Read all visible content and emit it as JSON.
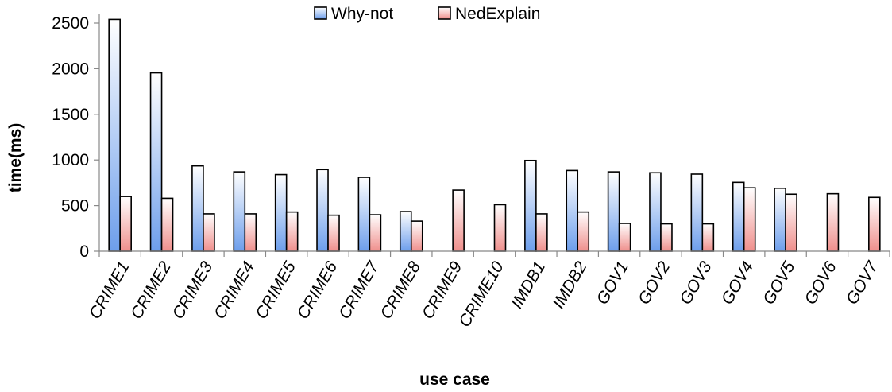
{
  "chart_data": {
    "type": "bar",
    "title": "",
    "xlabel": "use case",
    "ylabel": "time(ms)",
    "ylim": [
      0,
      2500
    ],
    "yticks": [
      0,
      500,
      1000,
      1500,
      2000,
      2500
    ],
    "grid": false,
    "legend_position": "top",
    "categories": [
      "CRIME1",
      "CRIME2",
      "CRIME3",
      "CRIME4",
      "CRIME5",
      "CRIME6",
      "CRIME7",
      "CRIME8",
      "CRIME9",
      "CRIME10",
      "IMDB1",
      "IMDB2",
      "GOV1",
      "GOV2",
      "GOV3",
      "GOV4",
      "GOV5",
      "GOV6",
      "GOV7"
    ],
    "series": [
      {
        "name": "Why-not",
        "color": "#6d9eeb",
        "values": [
          2540,
          1955,
          935,
          870,
          840,
          895,
          810,
          435,
          null,
          null,
          995,
          885,
          870,
          860,
          845,
          755,
          690,
          null,
          null
        ]
      },
      {
        "name": "NedExplain",
        "color": "#ef8f8c",
        "values": [
          600,
          580,
          410,
          410,
          430,
          395,
          400,
          330,
          670,
          510,
          410,
          430,
          305,
          300,
          300,
          695,
          625,
          630,
          590
        ]
      }
    ]
  }
}
